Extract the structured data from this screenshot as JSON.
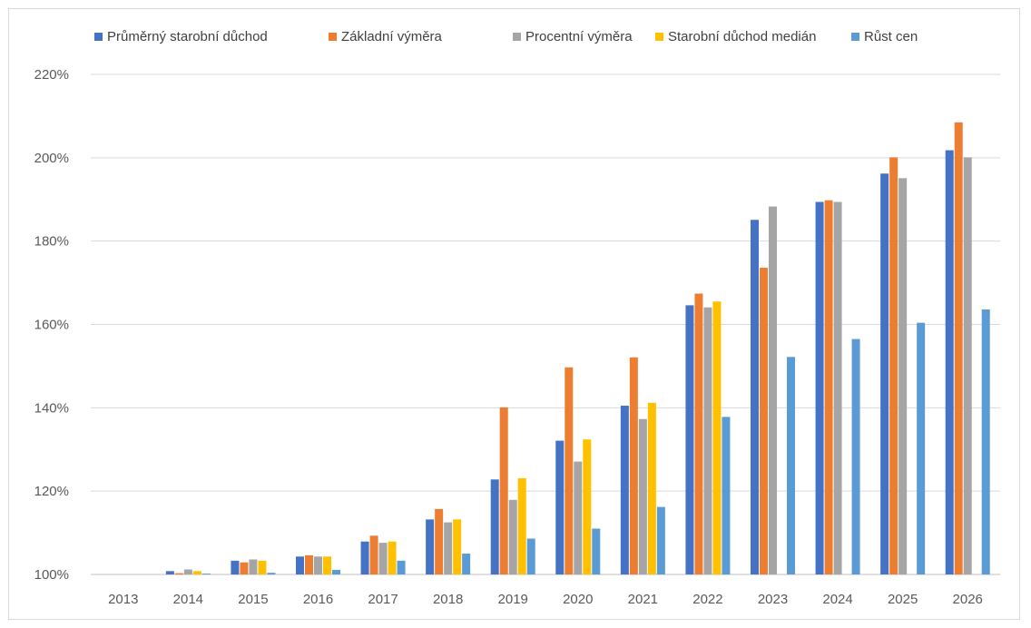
{
  "chart_data": {
    "type": "bar",
    "categories": [
      "2013",
      "2014",
      "2015",
      "2016",
      "2017",
      "2018",
      "2019",
      "2020",
      "2021",
      "2022",
      "2023",
      "2024",
      "2025",
      "2026"
    ],
    "series": [
      {
        "name": "Průměrný starobní důchod",
        "color": "#4472c4",
        "values": [
          100,
          100.8,
          103.3,
          104.3,
          107.9,
          113.2,
          122.8,
          132.1,
          140.5,
          164.6,
          185.1,
          189.4,
          196.2,
          201.8
        ]
      },
      {
        "name": "Základní výměra",
        "color": "#ed7d31",
        "values": [
          100,
          100.3,
          102.9,
          104.6,
          109.3,
          115.7,
          140.1,
          149.7,
          152.1,
          167.4,
          173.6,
          189.8,
          200.1,
          208.5
        ]
      },
      {
        "name": "Procentní výměra",
        "color": "#a5a5a5",
        "values": [
          100,
          101.2,
          103.6,
          104.3,
          107.6,
          112.5,
          117.9,
          127.1,
          137.3,
          164.1,
          188.3,
          189.4,
          195.1,
          200.1
        ]
      },
      {
        "name": "Starobní důchod medián",
        "color": "#ffc000",
        "values": [
          100,
          100.8,
          103.3,
          104.3,
          107.9,
          113.2,
          123.1,
          132.4,
          141.2,
          165.5,
          null,
          null,
          null,
          null
        ]
      },
      {
        "name": "Růst cen",
        "color": "#5b9bd5",
        "values": [
          100,
          100.2,
          100.4,
          101.1,
          103.3,
          105.0,
          108.6,
          111.0,
          116.2,
          137.8,
          152.2,
          156.5,
          160.4,
          163.6
        ]
      }
    ],
    "ylim": [
      100,
      220
    ],
    "yticks": [
      100,
      120,
      140,
      160,
      180,
      200,
      220
    ],
    "ytick_labels": [
      "100%",
      "120%",
      "140%",
      "160%",
      "180%",
      "200%",
      "220%"
    ],
    "grid": true,
    "legend_position": "top"
  }
}
